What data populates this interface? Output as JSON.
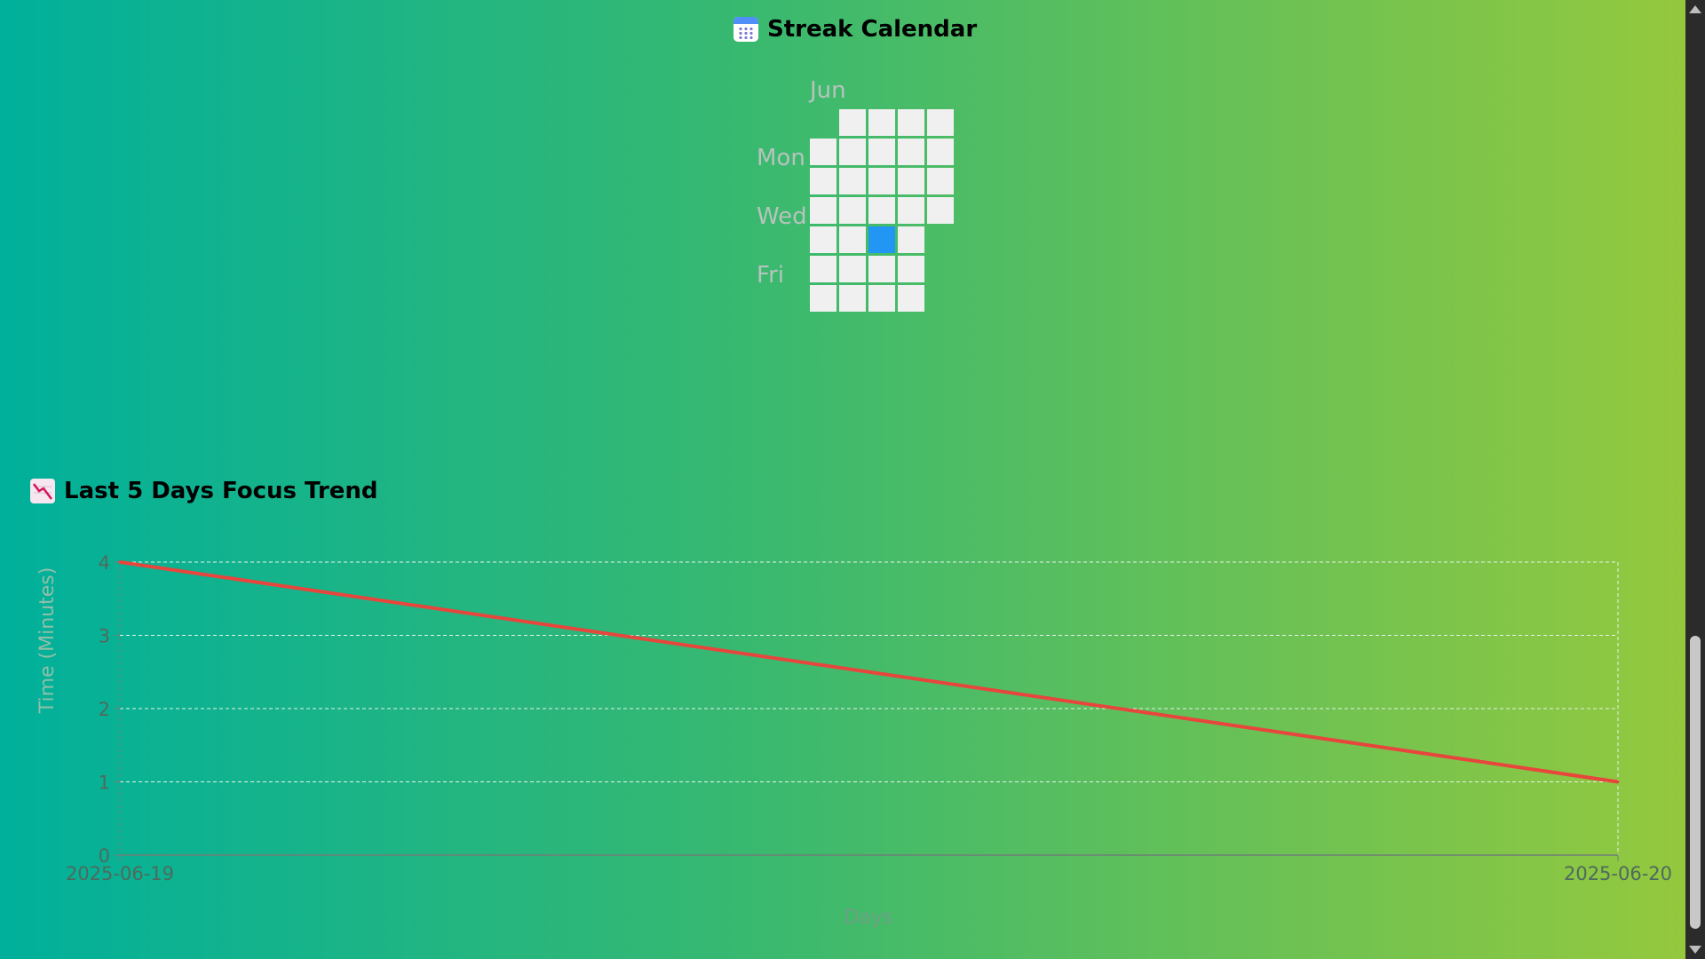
{
  "calendar": {
    "title": "Streak Calendar",
    "icon": "calendar-icon",
    "month_label": "Jun",
    "day_labels": [
      "Mon",
      "Wed",
      "Fri"
    ],
    "cell_color": "#f0f0f0",
    "active_color": "#2196f3",
    "weeks": [
      [
        0,
        1,
        1,
        1,
        1,
        1,
        1
      ],
      [
        1,
        1,
        1,
        1,
        1,
        1,
        1
      ],
      [
        1,
        1,
        1,
        1,
        2,
        1,
        1
      ],
      [
        1,
        1,
        1,
        1,
        1,
        1,
        1
      ],
      [
        1,
        1,
        1,
        1,
        0,
        0,
        0
      ]
    ]
  },
  "trend": {
    "title": "Last 5 Days Focus Trend",
    "icon": "chart-decreasing-icon"
  },
  "chart_data": {
    "type": "line",
    "x": [
      "2025-06-19",
      "2025-06-20"
    ],
    "series": [
      {
        "values": [
          4,
          1
        ],
        "color": "#e8453c"
      }
    ],
    "xlabel": "Days",
    "ylabel": "Time (Minutes)",
    "ylim": [
      0,
      4
    ],
    "yticks": [
      0,
      1,
      2,
      3,
      4
    ],
    "grid": true
  }
}
